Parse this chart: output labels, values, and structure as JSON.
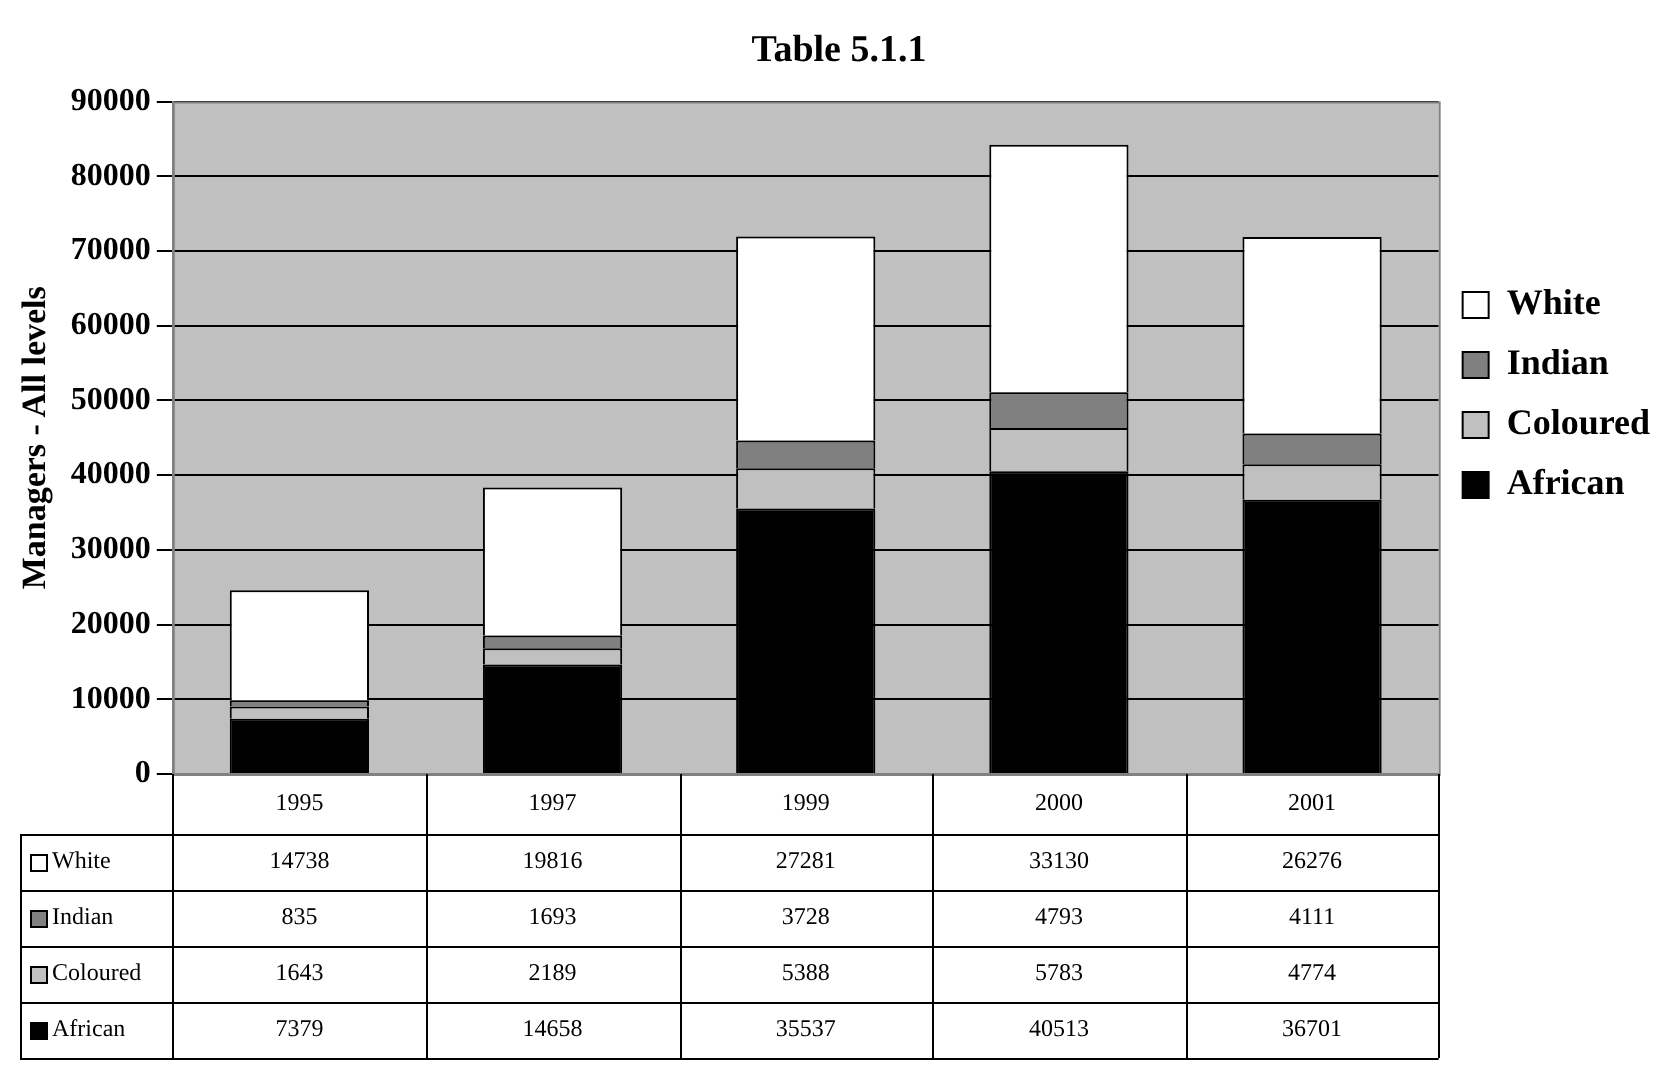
{
  "chart_data": {
    "type": "bar",
    "title": "Table 5.1.1",
    "ylabel": "Managers - All levels",
    "categories": [
      "1995",
      "1997",
      "1999",
      "2000",
      "2001"
    ],
    "series": [
      {
        "name": "African",
        "color": "#000000",
        "values": [
          7379,
          14658,
          35537,
          40513,
          36701
        ]
      },
      {
        "name": "Coloured",
        "color": "#c0c0c0",
        "values": [
          1643,
          2189,
          5388,
          5783,
          4774
        ]
      },
      {
        "name": "Indian",
        "color": "#808080",
        "values": [
          835,
          1693,
          3728,
          4793,
          4111
        ]
      },
      {
        "name": "White",
        "color": "#ffffff",
        "values": [
          14738,
          19816,
          27281,
          33130,
          26276
        ]
      }
    ],
    "stacked": true,
    "ylim": [
      0,
      90000
    ],
    "yticks": [
      0,
      10000,
      20000,
      30000,
      40000,
      50000,
      60000,
      70000,
      80000,
      90000
    ],
    "grid": "y",
    "legend": "right",
    "data_labels": true
  }
}
